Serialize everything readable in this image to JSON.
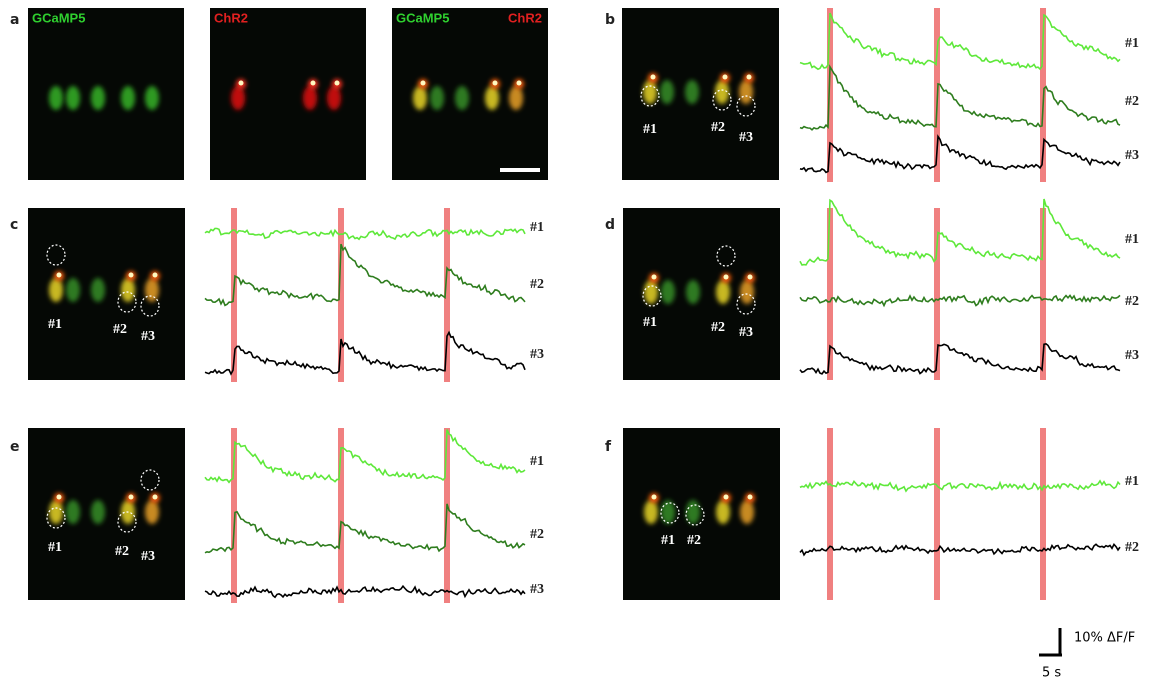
{
  "panels": [
    {
      "letter": "a",
      "image_labels": [
        "GCaMP5",
        "ChR2",
        "GCaMP5",
        "ChR2"
      ]
    },
    {
      "letter": "b",
      "cell_labels": [
        "#1",
        "#2",
        "#3"
      ],
      "trace_labels": [
        "#1",
        "#2",
        "#3"
      ]
    },
    {
      "letter": "c",
      "cell_labels": [
        "#1",
        "#2",
        "#3"
      ],
      "trace_labels": [
        "#1",
        "#2",
        "#3"
      ]
    },
    {
      "letter": "d",
      "cell_labels": [
        "#1",
        "#2",
        "#3"
      ],
      "trace_labels": [
        "#1",
        "#2",
        "#3"
      ]
    },
    {
      "letter": "e",
      "cell_labels": [
        "#1",
        "#2",
        "#3"
      ],
      "trace_labels": [
        "#1",
        "#2",
        "#3"
      ]
    },
    {
      "letter": "f",
      "cell_labels": [
        "#1",
        "#2"
      ],
      "trace_labels": [
        "#1",
        "#2"
      ]
    }
  ],
  "scale_bar": {
    "amplitude": "10% ΔF/F",
    "time": "5 s"
  }
}
